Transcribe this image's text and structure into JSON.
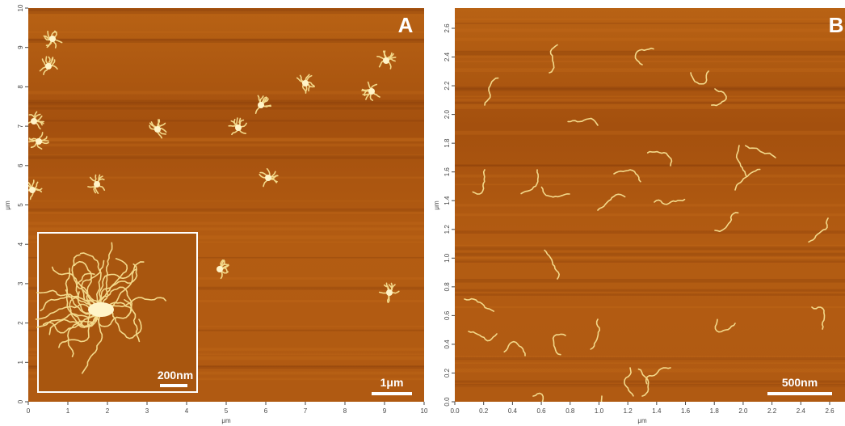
{
  "panels": [
    {
      "label": "A",
      "y_unit": "μm",
      "x_unit": "μm",
      "y_ticks": [
        "0",
        "1",
        "2",
        "3",
        "4",
        "5",
        "6",
        "7",
        "8",
        "9",
        "10"
      ],
      "x_ticks": [
        "0",
        "1",
        "2",
        "3",
        "4",
        "5",
        "6",
        "7",
        "8",
        "9",
        "10"
      ],
      "scale_bar": "1μm",
      "inset_scale_bar": "200nm"
    },
    {
      "label": "B",
      "y_unit": "μm",
      "x_unit": "μm",
      "y_ticks": [
        "0.0",
        "0.2",
        "0.4",
        "0.6",
        "0.8",
        "1.0",
        "1.2",
        "1.4",
        "1.6",
        "1.8",
        "2.0",
        "2.2",
        "2.4",
        "2.6"
      ],
      "x_ticks": [
        "0.0",
        "0.2",
        "0.4",
        "0.6",
        "0.8",
        "1.0",
        "1.2",
        "1.4",
        "1.6",
        "1.8",
        "2.0",
        "2.2",
        "2.4",
        "2.6"
      ],
      "scale_bar": "500nm"
    }
  ]
}
